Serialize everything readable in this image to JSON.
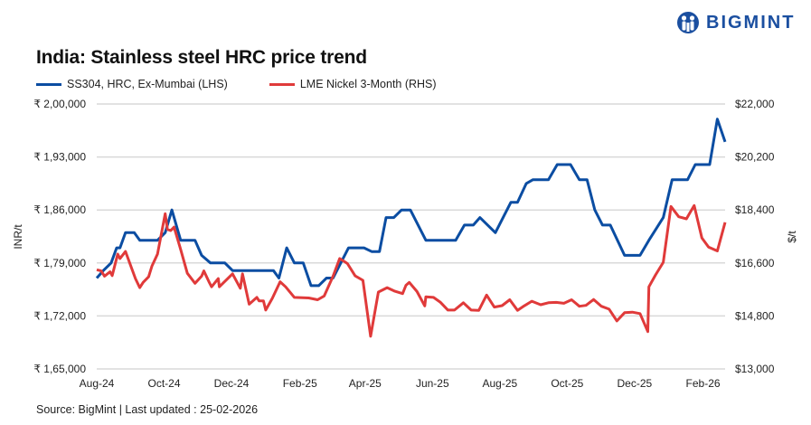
{
  "brand": {
    "name": "BIGMINT",
    "color": "#1b4fa0"
  },
  "source": "Source: BigMint | Last updated : 25-02-2026",
  "chart_data": {
    "type": "line",
    "title": "India: Stainless steel HRC price trend",
    "legend_position": "top-left",
    "grid": true,
    "x": {
      "type": "date",
      "range": [
        "2024-08-01",
        "2026-02-21"
      ],
      "ticks": [
        {
          "date": "2024-08-01",
          "label": "Aug-24"
        },
        {
          "date": "2024-10-01",
          "label": "Oct-24"
        },
        {
          "date": "2024-12-01",
          "label": "Dec-24"
        },
        {
          "date": "2025-02-01",
          "label": "Feb-25"
        },
        {
          "date": "2025-04-01",
          "label": "Apr-25"
        },
        {
          "date": "2025-06-01",
          "label": "Jun-25"
        },
        {
          "date": "2025-08-01",
          "label": "Aug-25"
        },
        {
          "date": "2025-10-01",
          "label": "Oct-25"
        },
        {
          "date": "2025-12-01",
          "label": "Dec-25"
        },
        {
          "date": "2026-02-01",
          "label": "Feb-26"
        }
      ]
    },
    "y_left": {
      "label": "INR/t",
      "range": [
        165000,
        200000
      ],
      "ticks": [
        {
          "value": 165000,
          "label": "₹ 1,65,000"
        },
        {
          "value": 172000,
          "label": "₹ 1,72,000"
        },
        {
          "value": 179000,
          "label": "₹ 1,79,000"
        },
        {
          "value": 186000,
          "label": "₹ 1,86,000"
        },
        {
          "value": 193000,
          "label": "₹ 1,93,000"
        },
        {
          "value": 200000,
          "label": "₹ 2,00,000"
        }
      ]
    },
    "y_right": {
      "label": "$/t",
      "range": [
        13000,
        22000
      ],
      "ticks": [
        {
          "value": 13000,
          "label": "$13,000"
        },
        {
          "value": 14800,
          "label": "$14,800"
        },
        {
          "value": 16600,
          "label": "$16,600"
        },
        {
          "value": 18400,
          "label": "$18,400"
        },
        {
          "value": 20200,
          "label": "$20,200"
        },
        {
          "value": 22000,
          "label": "$22,000"
        }
      ]
    },
    "series": [
      {
        "name": "SS304, HRC, Ex-Mumbai (LHS)",
        "axis": "left",
        "color": "#0b4da2",
        "points": [
          [
            "2024-08-01",
            177000
          ],
          [
            "2024-08-07",
            178000
          ],
          [
            "2024-08-14",
            179000
          ],
          [
            "2024-08-19",
            181000
          ],
          [
            "2024-08-22",
            181000
          ],
          [
            "2024-08-27",
            183000
          ],
          [
            "2024-09-04",
            183000
          ],
          [
            "2024-09-09",
            182000
          ],
          [
            "2024-09-25",
            182000
          ],
          [
            "2024-10-02",
            183000
          ],
          [
            "2024-10-08",
            186000
          ],
          [
            "2024-10-16",
            182000
          ],
          [
            "2024-10-29",
            182000
          ],
          [
            "2024-11-04",
            180000
          ],
          [
            "2024-11-12",
            179000
          ],
          [
            "2024-11-25",
            179000
          ],
          [
            "2024-12-02",
            178000
          ],
          [
            "2025-01-08",
            178000
          ],
          [
            "2025-01-13",
            177000
          ],
          [
            "2025-01-20",
            181000
          ],
          [
            "2025-01-27",
            179000
          ],
          [
            "2025-02-04",
            179000
          ],
          [
            "2025-02-11",
            176000
          ],
          [
            "2025-02-18",
            176000
          ],
          [
            "2025-02-25",
            177000
          ],
          [
            "2025-03-03",
            177000
          ],
          [
            "2025-03-10",
            179000
          ],
          [
            "2025-03-17",
            181000
          ],
          [
            "2025-03-31",
            181000
          ],
          [
            "2025-04-07",
            180500
          ],
          [
            "2025-04-14",
            180500
          ],
          [
            "2025-04-20",
            185000
          ],
          [
            "2025-04-27",
            185000
          ],
          [
            "2025-05-04",
            186000
          ],
          [
            "2025-05-12",
            186000
          ],
          [
            "2025-05-26",
            182000
          ],
          [
            "2025-06-22",
            182000
          ],
          [
            "2025-06-30",
            184000
          ],
          [
            "2025-07-08",
            184000
          ],
          [
            "2025-07-14",
            185000
          ],
          [
            "2025-07-28",
            183000
          ],
          [
            "2025-08-11",
            187000
          ],
          [
            "2025-08-17",
            187000
          ],
          [
            "2025-08-25",
            189500
          ],
          [
            "2025-08-31",
            190000
          ],
          [
            "2025-09-14",
            190000
          ],
          [
            "2025-09-22",
            192000
          ],
          [
            "2025-10-04",
            192000
          ],
          [
            "2025-10-12",
            190000
          ],
          [
            "2025-10-19",
            190000
          ],
          [
            "2025-10-26",
            186000
          ],
          [
            "2025-11-02",
            184000
          ],
          [
            "2025-11-09",
            184000
          ],
          [
            "2025-11-22",
            180000
          ],
          [
            "2025-12-06",
            180000
          ],
          [
            "2025-12-14",
            182000
          ],
          [
            "2025-12-27",
            185000
          ],
          [
            "2026-01-04",
            190000
          ],
          [
            "2026-01-18",
            190000
          ],
          [
            "2026-01-25",
            192000
          ],
          [
            "2026-02-07",
            192000
          ],
          [
            "2026-02-14",
            198000
          ],
          [
            "2026-02-21",
            195000
          ]
        ]
      },
      {
        "name": "LME Nickel 3-Month (RHS)",
        "axis": "right",
        "color": "#e03a3a",
        "points": [
          [
            "2024-08-01",
            16370
          ],
          [
            "2024-08-05",
            16330
          ],
          [
            "2024-08-08",
            16150
          ],
          [
            "2024-08-13",
            16300
          ],
          [
            "2024-08-15",
            16170
          ],
          [
            "2024-08-20",
            16900
          ],
          [
            "2024-08-22",
            16750
          ],
          [
            "2024-08-27",
            16990
          ],
          [
            "2024-09-05",
            16070
          ],
          [
            "2024-09-09",
            15760
          ],
          [
            "2024-09-12",
            15940
          ],
          [
            "2024-09-17",
            16130
          ],
          [
            "2024-09-20",
            16500
          ],
          [
            "2024-09-25",
            16900
          ],
          [
            "2024-10-02",
            18270
          ],
          [
            "2024-10-04",
            17740
          ],
          [
            "2024-10-07",
            17700
          ],
          [
            "2024-10-10",
            17820
          ],
          [
            "2024-10-16",
            17060
          ],
          [
            "2024-10-22",
            16250
          ],
          [
            "2024-10-29",
            15910
          ],
          [
            "2024-11-04",
            16150
          ],
          [
            "2024-11-06",
            16330
          ],
          [
            "2024-11-11",
            15930
          ],
          [
            "2024-11-13",
            15790
          ],
          [
            "2024-11-19",
            16070
          ],
          [
            "2024-11-20",
            15790
          ],
          [
            "2024-12-02",
            16230
          ],
          [
            "2024-12-09",
            15740
          ],
          [
            "2024-12-11",
            16230
          ],
          [
            "2024-12-17",
            15200
          ],
          [
            "2024-12-24",
            15430
          ],
          [
            "2024-12-26",
            15310
          ],
          [
            "2024-12-30",
            15310
          ],
          [
            "2025-01-01",
            15000
          ],
          [
            "2025-01-07",
            15400
          ],
          [
            "2025-01-14",
            15960
          ],
          [
            "2025-01-19",
            15790
          ],
          [
            "2025-01-27",
            15430
          ],
          [
            "2025-02-09",
            15410
          ],
          [
            "2025-02-17",
            15350
          ],
          [
            "2025-02-23",
            15480
          ],
          [
            "2025-03-03",
            16150
          ],
          [
            "2025-03-09",
            16750
          ],
          [
            "2025-03-16",
            16580
          ],
          [
            "2025-03-23",
            16160
          ],
          [
            "2025-03-30",
            16010
          ],
          [
            "2025-04-06",
            14110
          ],
          [
            "2025-04-13",
            15610
          ],
          [
            "2025-04-21",
            15760
          ],
          [
            "2025-04-28",
            15640
          ],
          [
            "2025-05-05",
            15560
          ],
          [
            "2025-05-08",
            15840
          ],
          [
            "2025-05-11",
            15940
          ],
          [
            "2025-05-18",
            15630
          ],
          [
            "2025-05-25",
            15140
          ],
          [
            "2025-05-26",
            15450
          ],
          [
            "2025-06-02",
            15430
          ],
          [
            "2025-06-08",
            15270
          ],
          [
            "2025-06-15",
            15000
          ],
          [
            "2025-06-21",
            15000
          ],
          [
            "2025-06-29",
            15250
          ],
          [
            "2025-07-06",
            15000
          ],
          [
            "2025-07-13",
            14990
          ],
          [
            "2025-07-20",
            15510
          ],
          [
            "2025-07-27",
            15100
          ],
          [
            "2025-08-03",
            15150
          ],
          [
            "2025-08-10",
            15350
          ],
          [
            "2025-08-17",
            14990
          ],
          [
            "2025-08-23",
            15140
          ],
          [
            "2025-08-30",
            15300
          ],
          [
            "2025-09-07",
            15180
          ],
          [
            "2025-09-14",
            15250
          ],
          [
            "2025-09-21",
            15260
          ],
          [
            "2025-09-28",
            15230
          ],
          [
            "2025-10-05",
            15350
          ],
          [
            "2025-10-12",
            15130
          ],
          [
            "2025-10-18",
            15160
          ],
          [
            "2025-10-25",
            15360
          ],
          [
            "2025-11-01",
            15130
          ],
          [
            "2025-11-08",
            15030
          ],
          [
            "2025-11-15",
            14630
          ],
          [
            "2025-11-22",
            14910
          ],
          [
            "2025-11-29",
            14930
          ],
          [
            "2025-12-06",
            14880
          ],
          [
            "2025-12-13",
            14270
          ],
          [
            "2025-12-14",
            15790
          ],
          [
            "2025-12-20",
            16190
          ],
          [
            "2025-12-27",
            16620
          ],
          [
            "2026-01-03",
            18520
          ],
          [
            "2026-01-10",
            18170
          ],
          [
            "2026-01-17",
            18100
          ],
          [
            "2026-01-24",
            18550
          ],
          [
            "2026-01-31",
            17450
          ],
          [
            "2026-02-06",
            17140
          ],
          [
            "2026-02-14",
            17010
          ],
          [
            "2026-02-21",
            17980
          ]
        ]
      }
    ]
  }
}
